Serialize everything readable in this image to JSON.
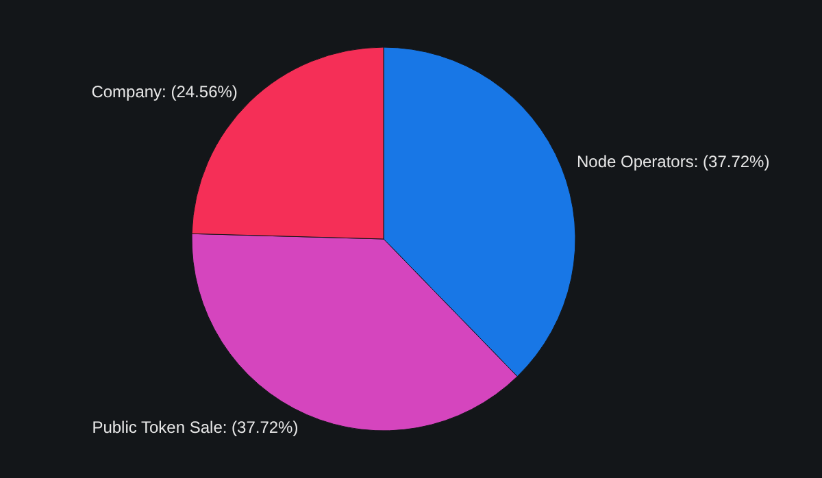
{
  "chart_data": {
    "type": "pie",
    "categories": [
      "Node Operators",
      "Public Token Sale",
      "Company"
    ],
    "values": [
      37.72,
      37.72,
      24.56
    ],
    "colors": [
      "#1877e6",
      "#d545be",
      "#f52f57"
    ],
    "value_labels": [
      "(37.72%)",
      "(37.72%)",
      "(24.56%)"
    ],
    "legend": false
  }
}
